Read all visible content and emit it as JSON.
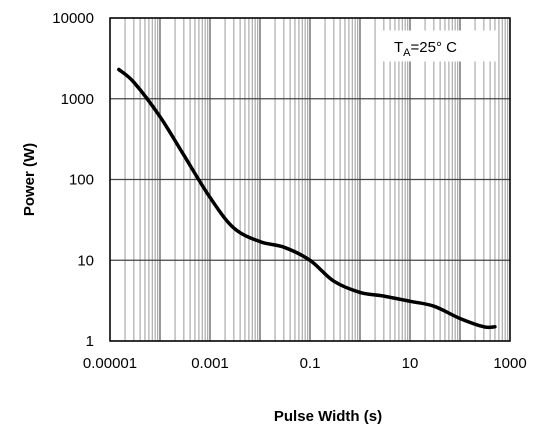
{
  "chart_data": {
    "type": "line",
    "xscale": "log",
    "yscale": "log",
    "xlim": [
      1e-05,
      1000
    ],
    "ylim": [
      1,
      10000
    ],
    "xlabel": "Pulse Width (s)",
    "ylabel": "Power (W)",
    "grid": true,
    "x_ticks": [
      {
        "value": 1e-05,
        "label": "0.00001"
      },
      {
        "value": 0.001,
        "label": "0.001"
      },
      {
        "value": 0.1,
        "label": "0.1"
      },
      {
        "value": 10,
        "label": "10"
      },
      {
        "value": 1000,
        "label": "1000"
      }
    ],
    "y_ticks": [
      {
        "value": 1,
        "label": "1"
      },
      {
        "value": 10,
        "label": "10"
      },
      {
        "value": 100,
        "label": "100"
      },
      {
        "value": 1000,
        "label": "1000"
      },
      {
        "value": 10000,
        "label": "10000"
      }
    ],
    "annotation": {
      "main": "T",
      "sub": "A",
      "rest": "=25° C"
    },
    "series": [
      {
        "x": [
          1.5e-05,
          3e-05,
          0.0001,
          0.0003,
          0.001,
          0.003,
          0.01,
          0.03,
          0.1,
          0.3,
          1,
          3,
          10,
          30,
          100,
          300,
          500
        ],
        "y": [
          2300,
          1600,
          600,
          200,
          60,
          25,
          17,
          14.5,
          10,
          5.5,
          4.0,
          3.6,
          3.1,
          2.7,
          1.9,
          1.5,
          1.5
        ]
      }
    ]
  }
}
